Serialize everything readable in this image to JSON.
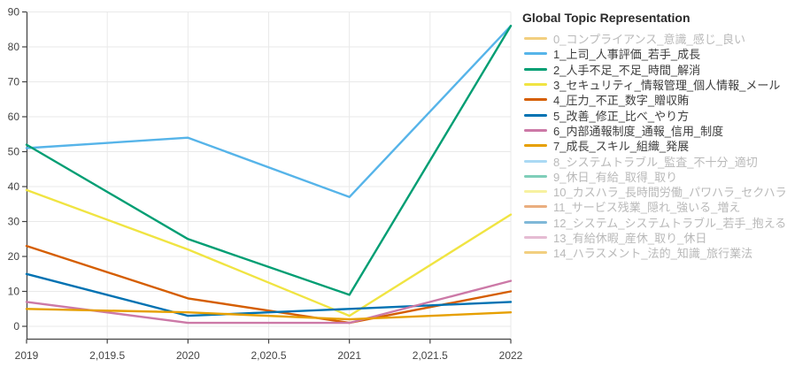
{
  "chart_data": {
    "type": "line",
    "x": [
      2019,
      2020,
      2021,
      2022
    ],
    "xlim": [
      2019,
      2022
    ],
    "ylim": [
      0,
      90
    ],
    "grid": true,
    "legend_position": "right",
    "x_ticks": [
      {
        "value": 2019,
        "label": "2019"
      },
      {
        "value": 2019.5,
        "label": "2,019.5"
      },
      {
        "value": 2020,
        "label": "2020"
      },
      {
        "value": 2020.5,
        "label": "2,020.5"
      },
      {
        "value": 2021,
        "label": "2021"
      },
      {
        "value": 2021.5,
        "label": "2,021.5"
      },
      {
        "value": 2022,
        "label": "2022"
      }
    ],
    "y_ticks": [
      {
        "value": 0,
        "label": "0"
      },
      {
        "value": 10,
        "label": "10"
      },
      {
        "value": 20,
        "label": "20"
      },
      {
        "value": 30,
        "label": "30"
      },
      {
        "value": 40,
        "label": "40"
      },
      {
        "value": 50,
        "label": "50"
      },
      {
        "value": 60,
        "label": "60"
      },
      {
        "value": 70,
        "label": "70"
      },
      {
        "value": 80,
        "label": "80"
      },
      {
        "value": 90,
        "label": "90"
      }
    ],
    "series": [
      {
        "topic": "1",
        "name": "1_上司_人事評価_若手_成長",
        "color": "#56B4E9",
        "values": [
          51,
          54,
          37,
          86
        ]
      },
      {
        "topic": "2",
        "name": "2_人手不足_不足_時間_解消",
        "color": "#009E73",
        "values": [
          52,
          25,
          9,
          86
        ]
      },
      {
        "topic": "3",
        "name": "3_セキュリティ_情報管理_個人情報_メール",
        "color": "#F0E442",
        "values": [
          39,
          22,
          3,
          32
        ]
      },
      {
        "topic": "4",
        "name": "4_圧力_不正_数字_贈収賄",
        "color": "#D55E00",
        "values": [
          23,
          8,
          1,
          10
        ]
      },
      {
        "topic": "5",
        "name": "5_改善_修正_比べ_やり方",
        "color": "#0072B2",
        "values": [
          15,
          3,
          5,
          7
        ]
      },
      {
        "topic": "6",
        "name": "6_内部通報制度_通報_信用_制度",
        "color": "#CC79A7",
        "values": [
          7,
          1,
          1,
          13
        ]
      },
      {
        "topic": "7",
        "name": "7_成長_スキル_組織_発展",
        "color": "#E69F00",
        "values": [
          5,
          4,
          2,
          4
        ]
      }
    ],
    "legend": {
      "title": "Global Topic Representation",
      "items": [
        {
          "label": "0_コンプライアンス_意識_感じ_良い",
          "color": "#E69F00",
          "muted": true
        },
        {
          "label": "1_上司_人事評価_若手_成長",
          "color": "#56B4E9",
          "muted": false
        },
        {
          "label": "2_人手不足_不足_時間_解消",
          "color": "#009E73",
          "muted": false
        },
        {
          "label": "3_セキュリティ_情報管理_個人情報_メール",
          "color": "#F0E442",
          "muted": false
        },
        {
          "label": "4_圧力_不正_数字_贈収賄",
          "color": "#D55E00",
          "muted": false
        },
        {
          "label": "5_改善_修正_比べ_やり方",
          "color": "#0072B2",
          "muted": false
        },
        {
          "label": "6_内部通報制度_通報_信用_制度",
          "color": "#CC79A7",
          "muted": false
        },
        {
          "label": "7_成長_スキル_組織_発展",
          "color": "#E69F00",
          "muted": false
        },
        {
          "label": "8_システムトラブル_監査_不十分_適切",
          "color": "#56B4E9",
          "muted": true
        },
        {
          "label": "9_休日_有給_取得_取り",
          "color": "#009E73",
          "muted": true
        },
        {
          "label": "10_カスハラ_長時間労働_パワハラ_セクハラ",
          "color": "#F0E442",
          "muted": true
        },
        {
          "label": "11_サービス残業_隠れ_強いる_増え",
          "color": "#D55E00",
          "muted": true
        },
        {
          "label": "12_システム_システムトラブル_若手_抱える",
          "color": "#0072B2",
          "muted": true
        },
        {
          "label": "13_有給休暇_産休_取り_休日",
          "color": "#CC79A7",
          "muted": true
        },
        {
          "label": "14_ハラスメント_法的_知識_旅行業法",
          "color": "#E69F00",
          "muted": true
        }
      ]
    },
    "colors": {
      "axis": "#444444",
      "gridline": "#e9e9e9",
      "tick_text": "#444444",
      "background": "#ffffff"
    }
  }
}
